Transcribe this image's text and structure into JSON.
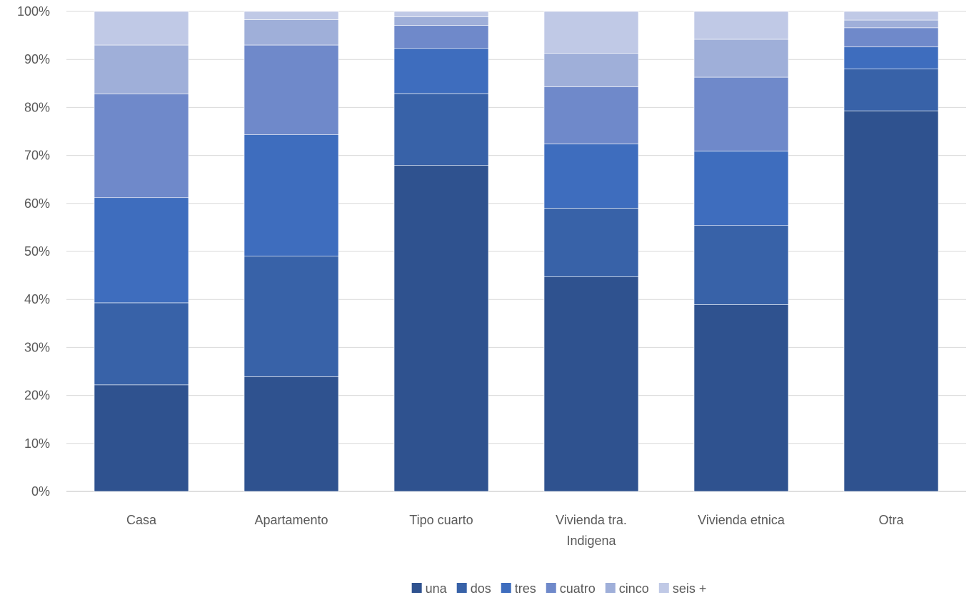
{
  "chart_data": {
    "type": "bar",
    "stacked": true,
    "percent_stacked": true,
    "categories": [
      "Casa",
      "Apartamento",
      "Tipo cuarto",
      "Vivienda tra. Indigena",
      "Vivienda etnica",
      "Otra"
    ],
    "category_label_lines": [
      [
        "Casa"
      ],
      [
        "Apartamento"
      ],
      [
        "Tipo cuarto"
      ],
      [
        "Vivienda tra.",
        "Indigena"
      ],
      [
        "Vivienda etnica"
      ],
      [
        "Otra"
      ]
    ],
    "series": [
      {
        "name": "una",
        "color": "#2F528F",
        "values": [
          22.2,
          23.9,
          67.9,
          44.7,
          38.9,
          79.3
        ]
      },
      {
        "name": "dos",
        "color": "#3862A8",
        "values": [
          17.1,
          25.1,
          15.0,
          14.3,
          16.5,
          8.7
        ]
      },
      {
        "name": "tres",
        "color": "#3E6DBE",
        "values": [
          21.9,
          25.3,
          9.4,
          13.4,
          15.5,
          4.6
        ]
      },
      {
        "name": "cuatro",
        "color": "#6F89CA",
        "values": [
          21.6,
          18.7,
          4.8,
          11.9,
          15.4,
          4.0
        ]
      },
      {
        "name": "cinco",
        "color": "#9FAFD9",
        "values": [
          10.2,
          5.3,
          1.8,
          7.0,
          7.9,
          1.6
        ]
      },
      {
        "name": "seis +",
        "color": "#C0C9E6",
        "values": [
          7.0,
          1.7,
          1.1,
          8.7,
          5.8,
          1.8
        ]
      }
    ],
    "ylim": [
      0,
      100
    ],
    "yticks": [
      "0%",
      "10%",
      "20%",
      "30%",
      "40%",
      "50%",
      "60%",
      "70%",
      "80%",
      "90%",
      "100%"
    ],
    "grid": true,
    "legend_position": "bottom",
    "title": "",
    "xlabel": "",
    "ylabel": ""
  }
}
